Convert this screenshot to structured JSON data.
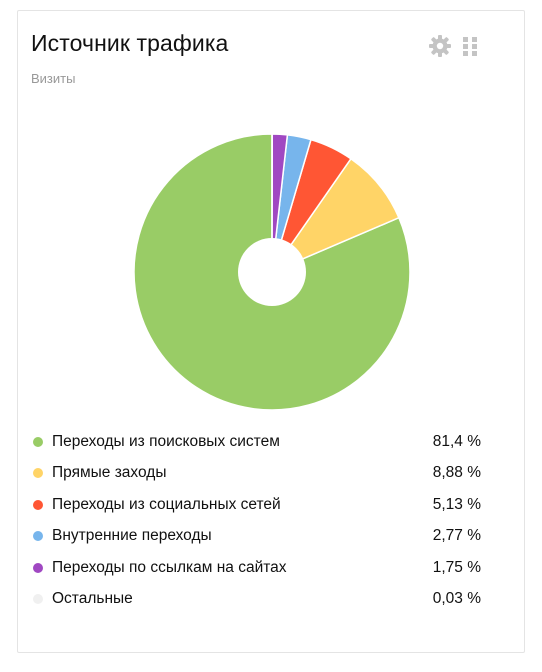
{
  "widget": {
    "title": "Источник трафика",
    "subtitle": "Визиты",
    "settings_icon": "gear-icon",
    "drag_icon": "drag-handle-icon",
    "icon_color": "#c4c4c4"
  },
  "chart_data": {
    "type": "pie",
    "title": "Источник трафика",
    "subtitle": "Визиты",
    "legend_placement": "bottom",
    "hole": true,
    "slices": [
      {
        "label": "Переходы из поисковых систем",
        "value": 81.4,
        "value_text": "81,4 %",
        "color": "#99cc66"
      },
      {
        "label": "Прямые заходы",
        "value": 8.88,
        "value_text": "8,88 %",
        "color": "#ffd467"
      },
      {
        "label": "Переходы из социальных сетей",
        "value": 5.13,
        "value_text": "5,13 %",
        "color": "#ff5634"
      },
      {
        "label": "Внутренние переходы",
        "value": 2.77,
        "value_text": "2,77 %",
        "color": "#77b5ec"
      },
      {
        "label": "Переходы по ссылкам на сайтах",
        "value": 1.75,
        "value_text": "1,75 %",
        "color": "#a048c2"
      },
      {
        "label": "Остальные",
        "value": 0.03,
        "value_text": "0,03 %",
        "color": "#f0f0f0"
      }
    ]
  }
}
